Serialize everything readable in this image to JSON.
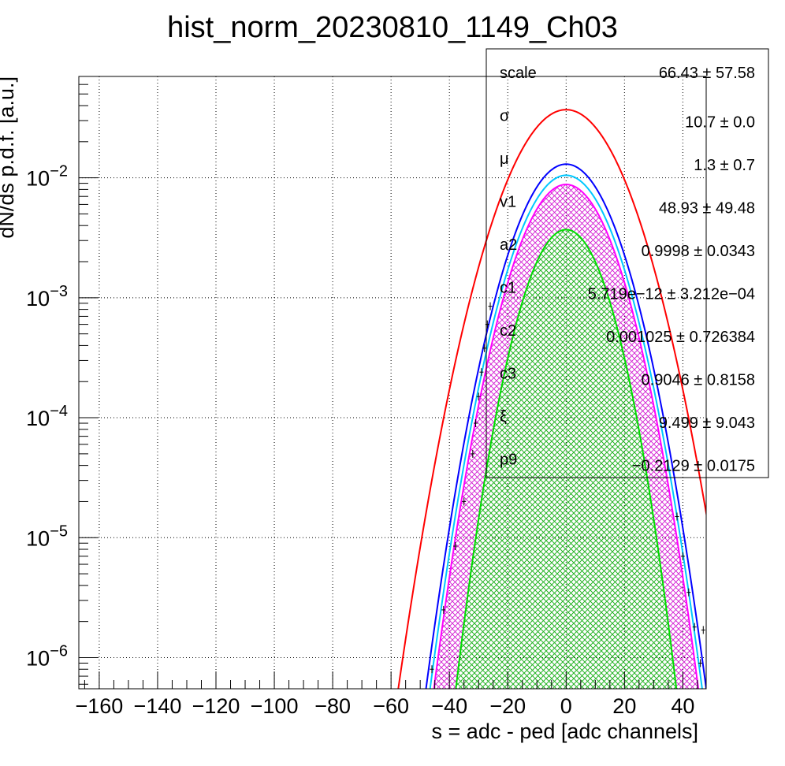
{
  "chart_data": {
    "type": "line",
    "title": "hist_norm_20230810_1149_Ch03",
    "xlabel": "s = adc - ped [adc channels]",
    "ylabel": "dN/ds p.d.f. [a.u.]",
    "xlim": [
      -167,
      48
    ],
    "ylim": [
      5.5e-07,
      0.07
    ],
    "yscale": "log",
    "grid": true,
    "x_ticks": [
      -160,
      -140,
      -120,
      -100,
      -80,
      -60,
      -40,
      -20,
      0,
      20,
      40
    ],
    "x_tick_labels": [
      "−160",
      "−140",
      "−120",
      "−100",
      "−80",
      "−60",
      "−40",
      "−20",
      "0",
      "20",
      "40"
    ],
    "y_ticks": [
      {
        "base": "10",
        "exp": "−2",
        "value": 0.01
      },
      {
        "base": "10",
        "exp": "−3",
        "value": 0.001
      },
      {
        "base": "10",
        "exp": "−4",
        "value": 0.0001
      },
      {
        "base": "10",
        "exp": "−5",
        "value": 1e-05
      },
      {
        "base": "10",
        "exp": "−6",
        "value": 1e-06
      }
    ],
    "curves": [
      {
        "color": "#ff0000",
        "peak": 0.037,
        "mu": 0,
        "sigma": 12.2,
        "fill": "none"
      },
      {
        "color": "#0000ff",
        "peak": 0.013,
        "mu": 0,
        "sigma": 10.7,
        "fill": "none"
      },
      {
        "color": "#00c8ff",
        "peak": 0.0105,
        "mu": 0,
        "sigma": 10.5,
        "fill": "none"
      },
      {
        "color": "#ff00ff",
        "peak": 0.0088,
        "mu": 0,
        "sigma": 10.3,
        "fill": "crosshatch"
      },
      {
        "color": "#00dd00",
        "peak": 0.0037,
        "mu": 0,
        "sigma": 9.0,
        "fill": "crosshatch"
      }
    ],
    "data_points": [
      {
        "x": -46,
        "y": 8e-07
      },
      {
        "x": -42,
        "y": 2.5e-06
      },
      {
        "x": -38,
        "y": 8.5e-06
      },
      {
        "x": -35,
        "y": 2e-05
      },
      {
        "x": -32,
        "y": 5e-05
      },
      {
        "x": -31,
        "y": 9e-05
      },
      {
        "x": -30,
        "y": 0.00015
      },
      {
        "x": -29,
        "y": 0.00024
      },
      {
        "x": -28,
        "y": 0.00038
      },
      {
        "x": -27,
        "y": 0.0006
      },
      {
        "x": -26,
        "y": 0.00085
      },
      {
        "x": 38,
        "y": 1.5e-05
      },
      {
        "x": 40,
        "y": 7e-06
      },
      {
        "x": 42,
        "y": 3.5e-06
      },
      {
        "x": 44,
        "y": 1.8e-06
      },
      {
        "x": 46,
        "y": 9e-07
      },
      {
        "x": 47,
        "y": 1.7e-06
      }
    ],
    "stats_box": {
      "rows": [
        {
          "name": "scale",
          "value": "66.43 ± 57.58"
        },
        {
          "name": "σ",
          "value": "10.7 ± 0.0"
        },
        {
          "name": "μ",
          "value": "1.3 ± 0.7"
        },
        {
          "name": "v1",
          "value": "48.93 ± 49.48"
        },
        {
          "name": "a2",
          "value": "0.9998 ± 0.0343"
        },
        {
          "name": "c1",
          "value": "5.719e−12 ± 3.212e−04"
        },
        {
          "name": "c2",
          "value": "0.001025 ± 0.726384"
        },
        {
          "name": "c3",
          "value": "0.9046 ± 0.8158"
        },
        {
          "name": "ξ",
          "value": "9.499 ± 9.043"
        },
        {
          "name": "p9",
          "value": "−0.2129 ± 0.0175"
        }
      ]
    }
  }
}
